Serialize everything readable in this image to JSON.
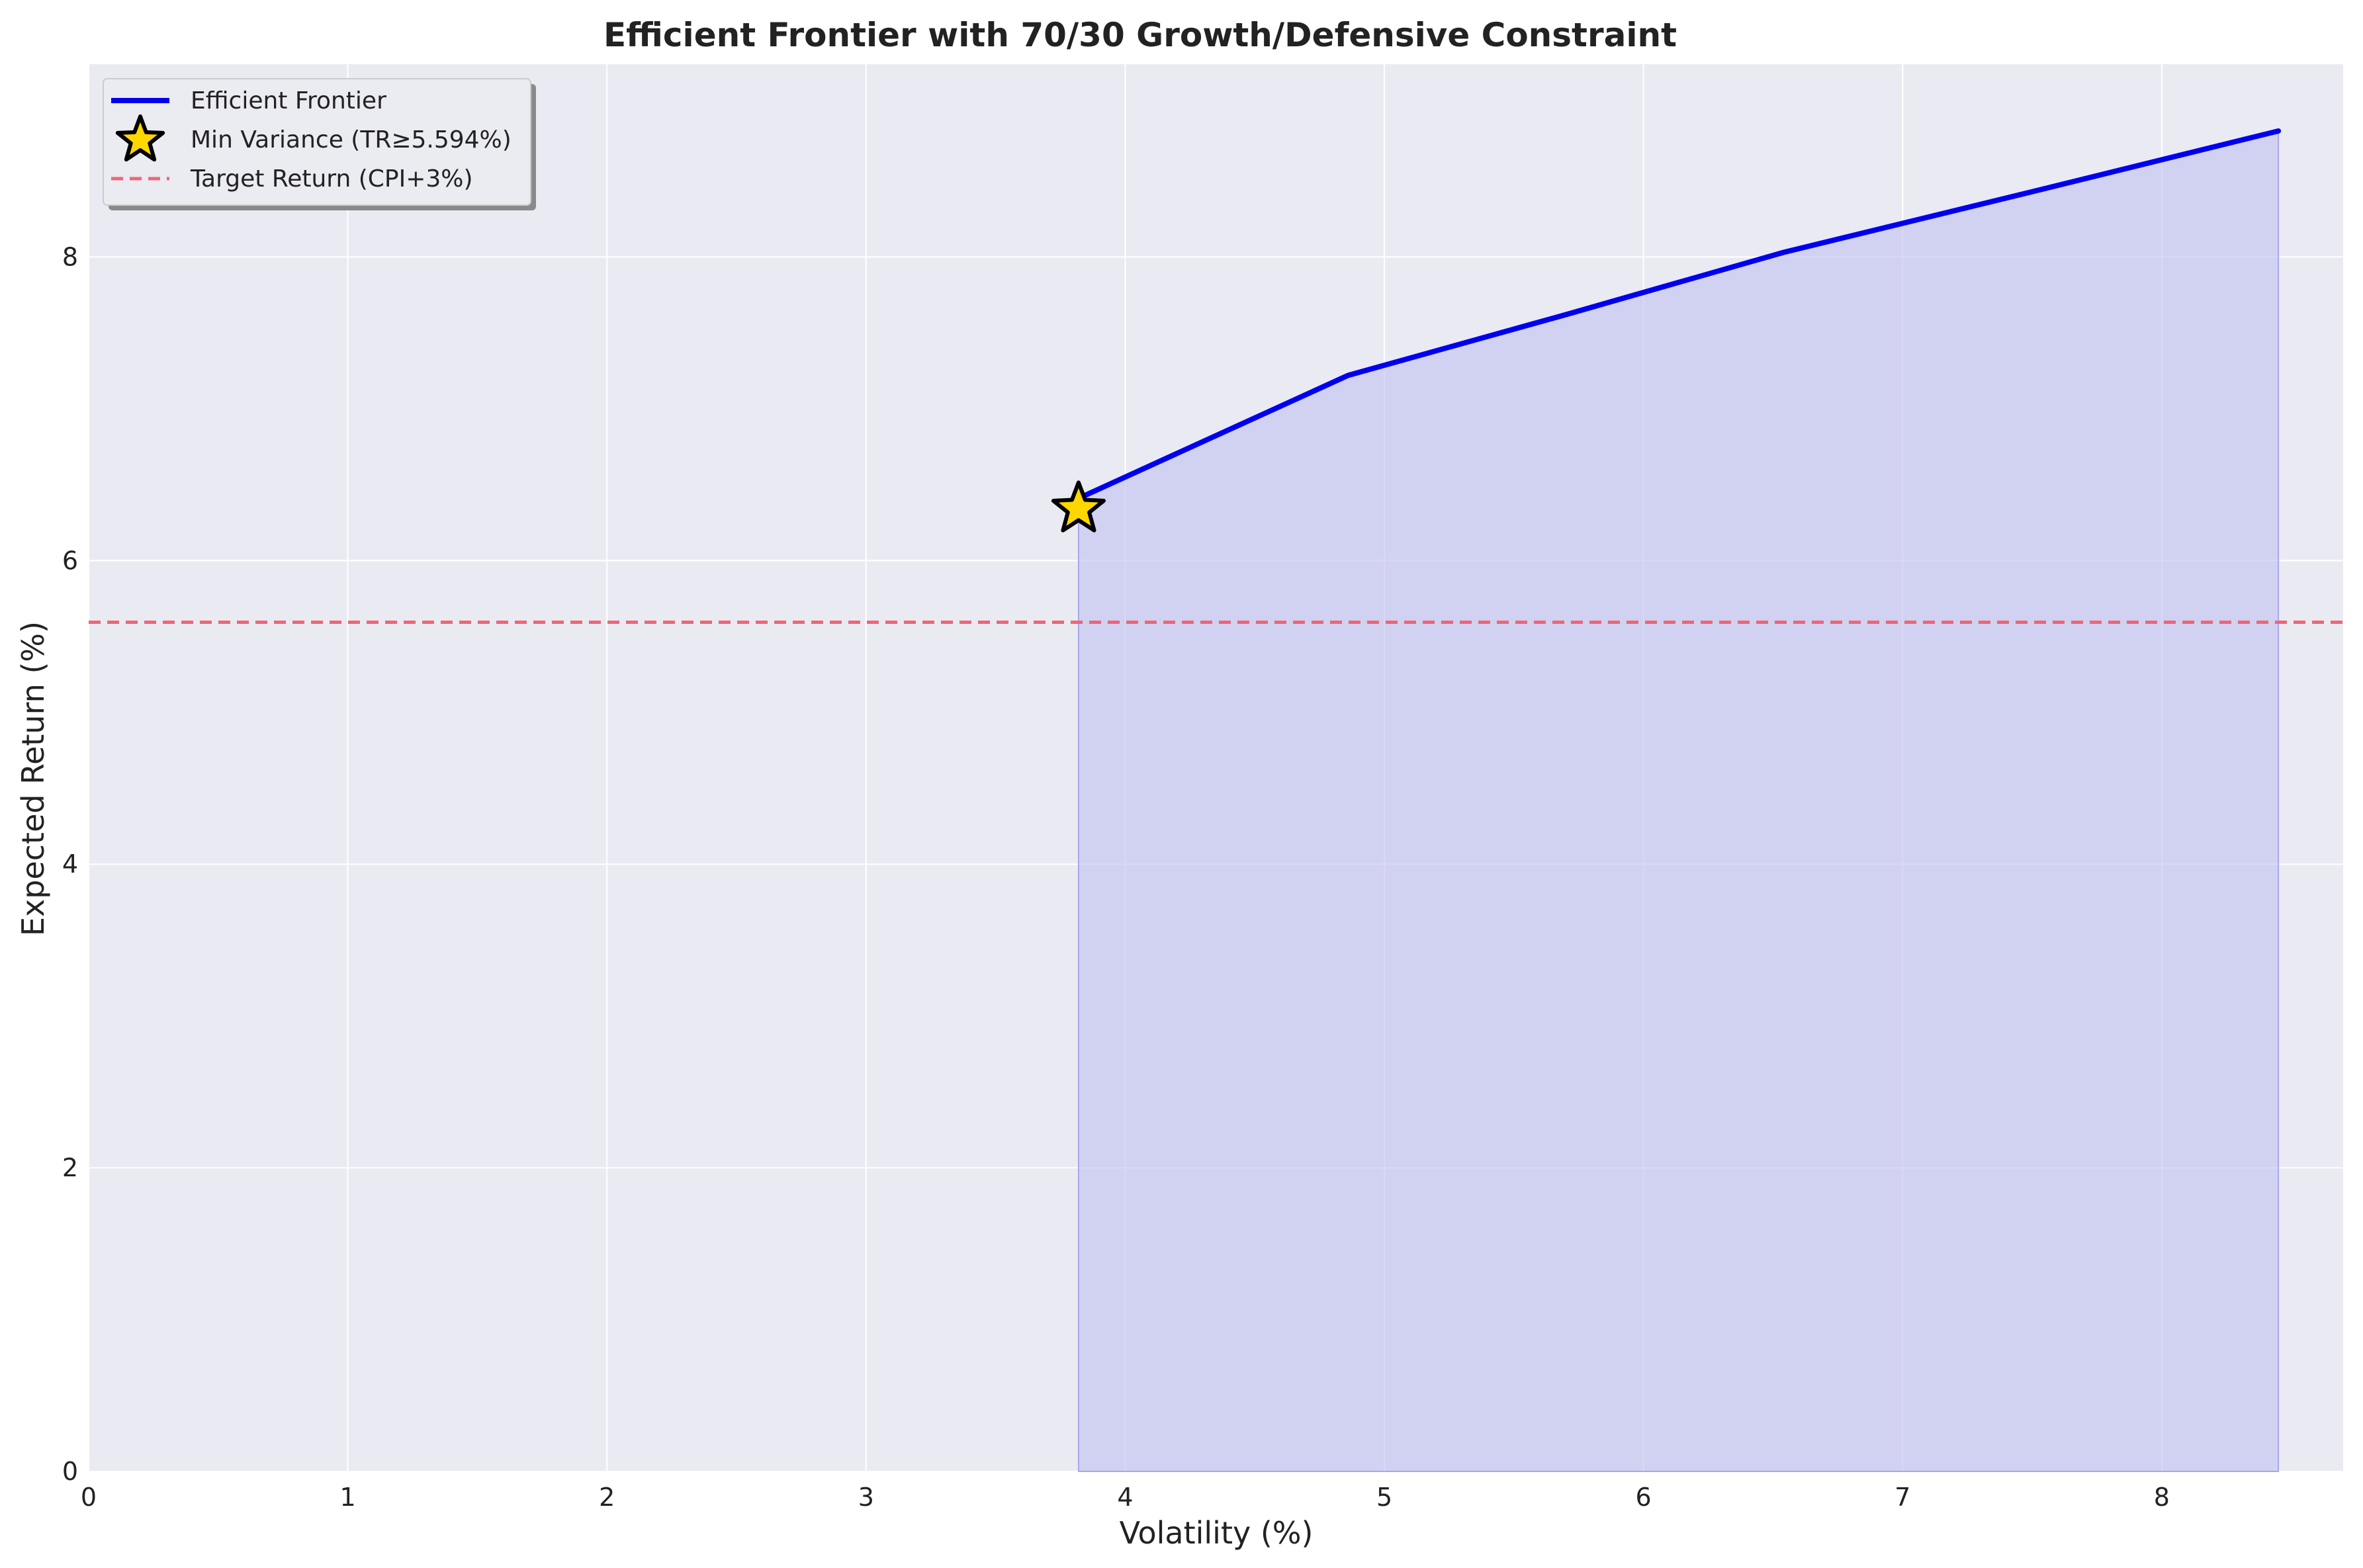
{
  "chart_data": {
    "type": "line",
    "title": "Efficient Frontier with 70/30 Growth/Defensive Constraint",
    "xlabel": "Volatility (%)",
    "ylabel": "Expected Return (%)",
    "xlim": [
      0,
      8.7
    ],
    "ylim": [
      0,
      9.27
    ],
    "xticks": [
      0,
      1,
      2,
      3,
      4,
      5,
      6,
      7,
      8
    ],
    "yticks": [
      0,
      2,
      4,
      6,
      8
    ],
    "grid": true,
    "legend_position": "top-left",
    "series": [
      {
        "name": "Efficient Frontier",
        "kind": "line",
        "color": "#0000ee",
        "fill_color": "#c0c0f0",
        "x": [
          3.82,
          4.86,
          5.7,
          6.54,
          7.5,
          8.45
        ],
        "y": [
          6.41,
          7.22,
          7.62,
          8.03,
          8.43,
          8.83
        ]
      },
      {
        "name": "Min Variance (TR≥5.594%)",
        "kind": "marker",
        "marker": "star",
        "color": "#ffd700",
        "edge_color": "#000000",
        "x": [
          3.82
        ],
        "y": [
          6.34
        ]
      },
      {
        "name": "Target Return (CPI+3%)",
        "kind": "hline",
        "color": "#ee6677",
        "y": 5.594
      }
    ]
  }
}
